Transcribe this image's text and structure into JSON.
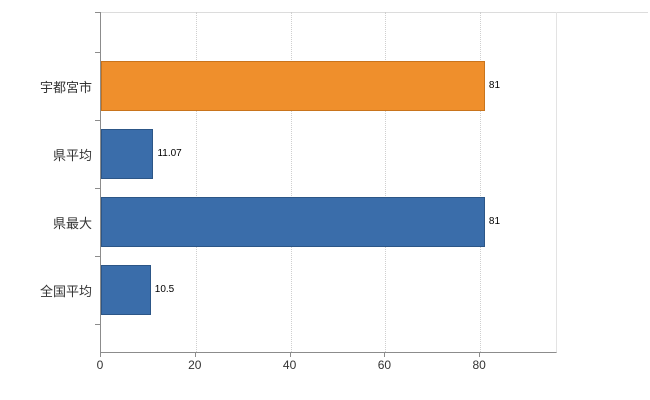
{
  "chart_data": {
    "type": "bar",
    "orientation": "horizontal",
    "title": "",
    "categories": [
      "宇都宮市",
      "県平均",
      "県最大",
      "全国平均"
    ],
    "values": [
      81,
      11.07,
      81,
      10.5
    ],
    "value_labels": [
      "81",
      "11.07",
      "81",
      "10.5"
    ],
    "bar_colors": [
      "#ef8f2c",
      "#3a6daa",
      "#3a6daa",
      "#3a6daa"
    ],
    "bar_border_colors": [
      "#c9741c",
      "#2c5687",
      "#2c5687",
      "#2c5687"
    ],
    "xlim": [
      0,
      96
    ],
    "x_ticks": [
      0,
      20,
      40,
      60,
      80
    ],
    "grid": true,
    "legend": false,
    "axis_color": "#8c8c8c",
    "grid_color": "#cfcfcf",
    "label_color": "#333333"
  }
}
